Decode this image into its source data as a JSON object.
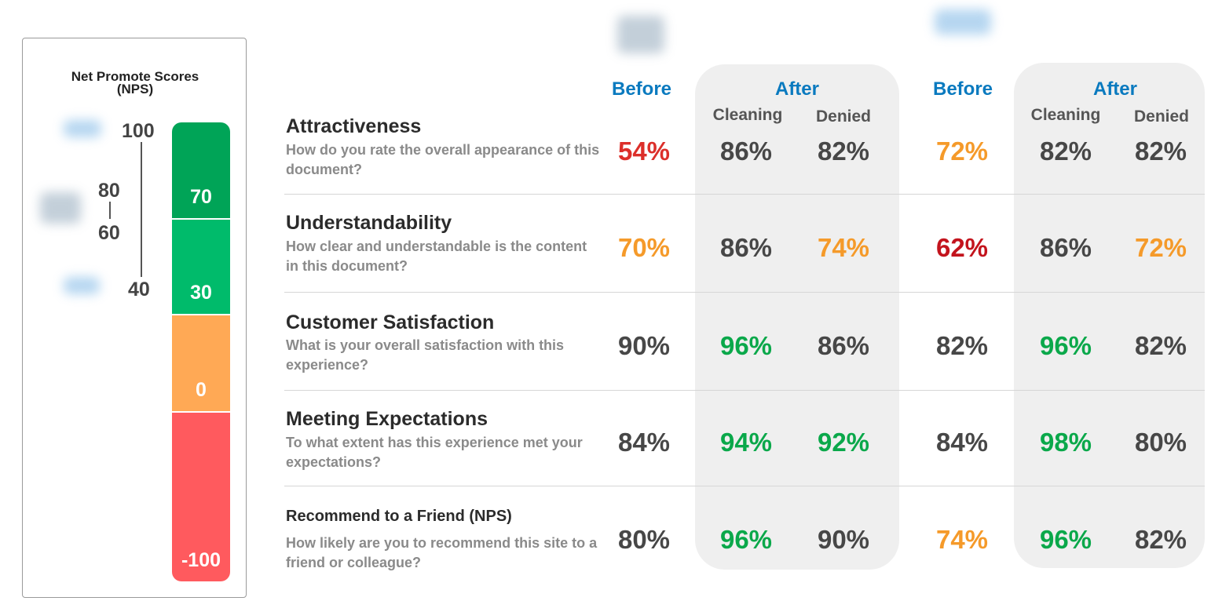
{
  "nps_legend": {
    "title_line1": "Net Promote Scores",
    "title_line2": "(NPS)",
    "scale_numbers": [
      "100",
      "80",
      "60",
      "40"
    ],
    "segments": [
      {
        "label": "70",
        "color": "#00a457"
      },
      {
        "label": "30",
        "color": "#00bb6b"
      },
      {
        "label": "0",
        "color": "#ffa955"
      },
      {
        "label": "-100",
        "color": "#ff5a5e"
      }
    ]
  },
  "colors": {
    "red": "#dc2f2a",
    "dark_red": "#c3141d",
    "orange": "#f59a2a",
    "green": "#0aa84a",
    "grey": "#474747",
    "header_blue": "#0a7abf"
  },
  "chart_data": {
    "type": "table",
    "groups": [
      {
        "columns": [
          {
            "header": "Before",
            "subheader": ""
          },
          {
            "header": "After",
            "subheader": "Cleaning"
          },
          {
            "header": "",
            "subheader": "Denied"
          }
        ]
      },
      {
        "columns": [
          {
            "header": "Before",
            "subheader": ""
          },
          {
            "header": "After",
            "subheader": "Cleaning"
          },
          {
            "header": "",
            "subheader": "Denied"
          }
        ]
      }
    ],
    "rows": [
      {
        "title": "Attractiveness",
        "question": "How do you rate the overall appearance of this document?",
        "values": [
          "54%",
          "86%",
          "82%",
          "72%",
          "82%",
          "82%"
        ],
        "colors": [
          "red",
          "grey",
          "grey",
          "orange",
          "grey",
          "grey"
        ]
      },
      {
        "title": "Understandability",
        "question": "How clear and understandable is the content in this document?",
        "values": [
          "70%",
          "86%",
          "74%",
          "62%",
          "86%",
          "72%"
        ],
        "colors": [
          "orange",
          "grey",
          "orange",
          "dark_red",
          "grey",
          "orange"
        ]
      },
      {
        "title": "Customer Satisfaction",
        "question": "What is your overall satisfaction with this experience?",
        "values": [
          "90%",
          "96%",
          "86%",
          "82%",
          "96%",
          "82%"
        ],
        "colors": [
          "grey",
          "green",
          "grey",
          "grey",
          "green",
          "grey"
        ]
      },
      {
        "title": "Meeting Expectations",
        "question": "To what extent has this experience met your expectations?",
        "values": [
          "84%",
          "94%",
          "92%",
          "84%",
          "98%",
          "80%"
        ],
        "colors": [
          "grey",
          "green",
          "green",
          "grey",
          "green",
          "grey"
        ]
      },
      {
        "title": "Recommend to a Friend (NPS)",
        "question": "How likely are you to recommend this site to a friend or colleague?",
        "values": [
          "80%",
          "96%",
          "90%",
          "74%",
          "96%",
          "82%"
        ],
        "colors": [
          "grey",
          "green",
          "grey",
          "orange",
          "green",
          "grey"
        ]
      }
    ]
  }
}
